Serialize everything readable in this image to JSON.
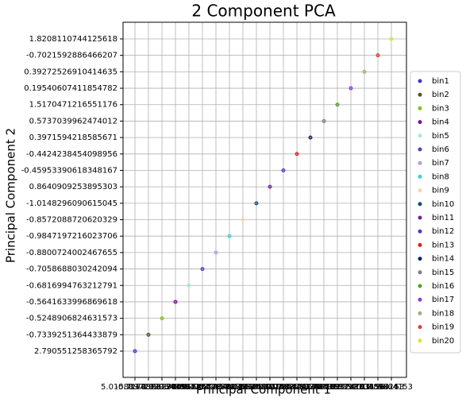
{
  "chart_data": {
    "type": "scatter",
    "title": "2 Component PCA",
    "x_label": "Principal Component 1",
    "y_label": "Principal Component 2",
    "x_categories": [
      "5.015889729396",
      "-0.71783982715",
      "0.648731204962",
      "0.129340857714",
      "-0.39081545176",
      "-0.86437726392",
      "-1.00829574185",
      "-0.77340019375",
      "-0.57136814524",
      "-0.61034487298",
      "-0.46193026511",
      "-0.30198541027",
      "-0.15437823341",
      "0.025987617633",
      "0.216744388392",
      "0.394182750019",
      "0.589124783156",
      "0.771330489824",
      "1.035564153",
      "1.5664153"
    ],
    "y_categories": [
      "2.790551258365792",
      "-0.7339251364433879",
      "-0.5248906824631573",
      "-0.5641633996869618",
      "-0.6816994763212791",
      "-0.7058688030242094",
      "-0.8800724002467655",
      "-0.9847197216023706",
      "-0.8572088720620329",
      "-1.0148296090615045",
      "0.8640909253895303",
      "-0.45953390618348167",
      "-0.4424238454098956",
      "0.3971594218585671",
      "0.5737039962474012",
      "1.5170471216551176",
      "0.19540607411854782",
      "0.39272526910414635",
      "-0.7021592886466207",
      "1.8208110744125618"
    ],
    "grid": true,
    "legend": "right",
    "series": [
      {
        "name": "bin1",
        "color": "#3a3ad0"
      },
      {
        "name": "bin2",
        "color": "#555520"
      },
      {
        "name": "bin3",
        "color": "#88c020"
      },
      {
        "name": "bin4",
        "color": "#8010a0"
      },
      {
        "name": "bin5",
        "color": "#a8e8d8"
      },
      {
        "name": "bin6",
        "color": "#5040c0"
      },
      {
        "name": "bin7",
        "color": "#b0a0e0"
      },
      {
        "name": "bin8",
        "color": "#40d0d0"
      },
      {
        "name": "bin9",
        "color": "#f0d8b0"
      },
      {
        "name": "bin10",
        "color": "#1a4a80"
      },
      {
        "name": "bin11",
        "color": "#7020a0"
      },
      {
        "name": "bin12",
        "color": "#4040c8"
      },
      {
        "name": "bin13",
        "color": "#e02020"
      },
      {
        "name": "bin14",
        "color": "#102060"
      },
      {
        "name": "bin15",
        "color": "#808090"
      },
      {
        "name": "bin16",
        "color": "#50a030"
      },
      {
        "name": "bin17",
        "color": "#8040e0"
      },
      {
        "name": "bin18",
        "color": "#a0b080"
      },
      {
        "name": "bin19",
        "color": "#e04030"
      },
      {
        "name": "bin20",
        "color": "#e0e040"
      }
    ]
  }
}
